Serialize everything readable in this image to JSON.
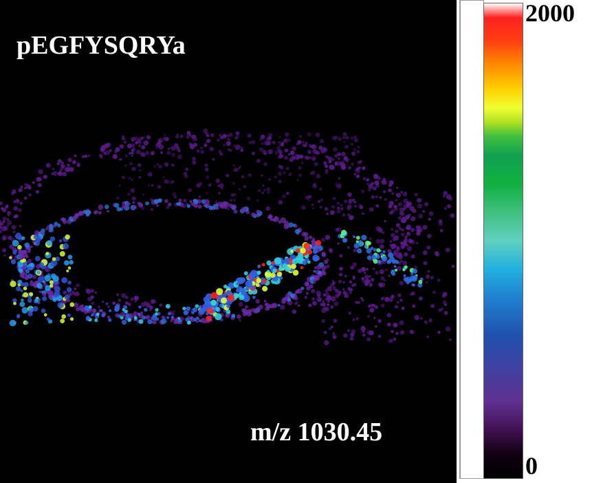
{
  "image": {
    "peptide_label": "pEGFYSQRYa",
    "mz_label": "m/z 1030.45",
    "background_color": "#000000"
  },
  "colorbar": {
    "max_label": "2000",
    "min_label": "0",
    "colormap": [
      "#ff2020",
      "#ff8c00",
      "#ffd000",
      "#40c040",
      "#10a050",
      "#20b0e0",
      "#2050b0",
      "#603090",
      "#000000"
    ]
  }
}
